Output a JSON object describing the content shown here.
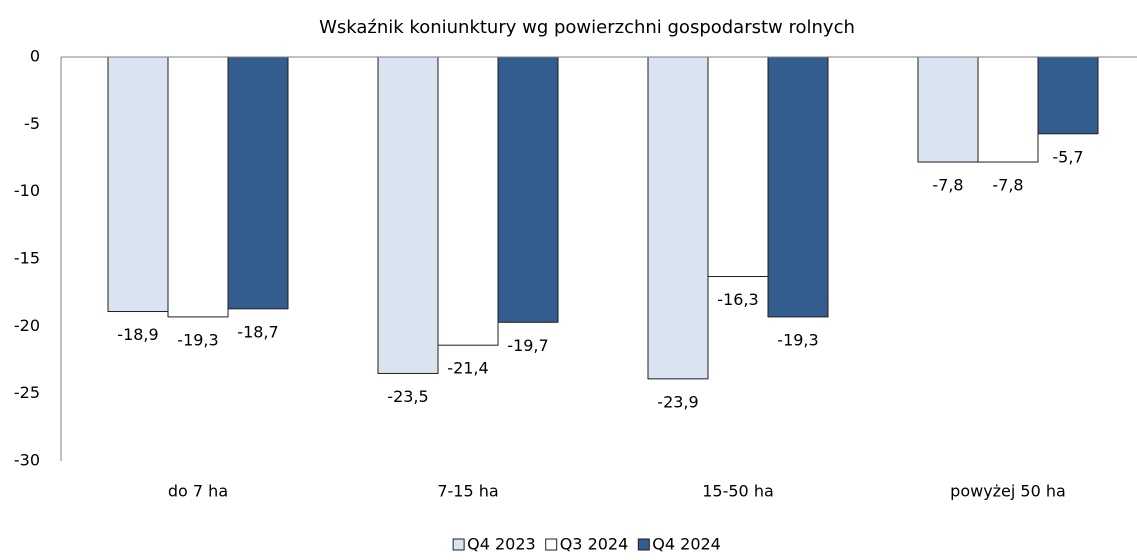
{
  "chart_data": {
    "type": "bar",
    "title": "Wskaźnik koniunktury wg powierzchni gospodarstw rolnych",
    "categories": [
      "do 7 ha",
      "7-15 ha",
      "15-50 ha",
      "powyżej 50 ha"
    ],
    "series": [
      {
        "name": "Q4 2023",
        "color": "#dae3f0",
        "values": [
          -18.9,
          -23.5,
          -23.9,
          -7.8
        ],
        "value_labels": [
          "-18,9",
          "-23,5",
          "-23,9",
          "-7,8"
        ]
      },
      {
        "name": "Q3 2024",
        "color": "#ffffff",
        "values": [
          -19.3,
          -21.4,
          -16.3,
          -7.8
        ],
        "value_labels": [
          "-19,3",
          "-21,4",
          "-16,3",
          "-7,8"
        ]
      },
      {
        "name": "Q4 2024",
        "color": "#335d8e",
        "values": [
          -18.7,
          -19.7,
          -19.3,
          -5.7
        ],
        "value_labels": [
          "-18,7",
          "-19,7",
          "-19,3",
          "-5,7"
        ]
      }
    ],
    "ylim": [
      -30,
      0
    ],
    "yticks": [
      0,
      -5,
      -10,
      -15,
      -20,
      -25,
      -30
    ],
    "grid": false,
    "legend": "bottom"
  }
}
